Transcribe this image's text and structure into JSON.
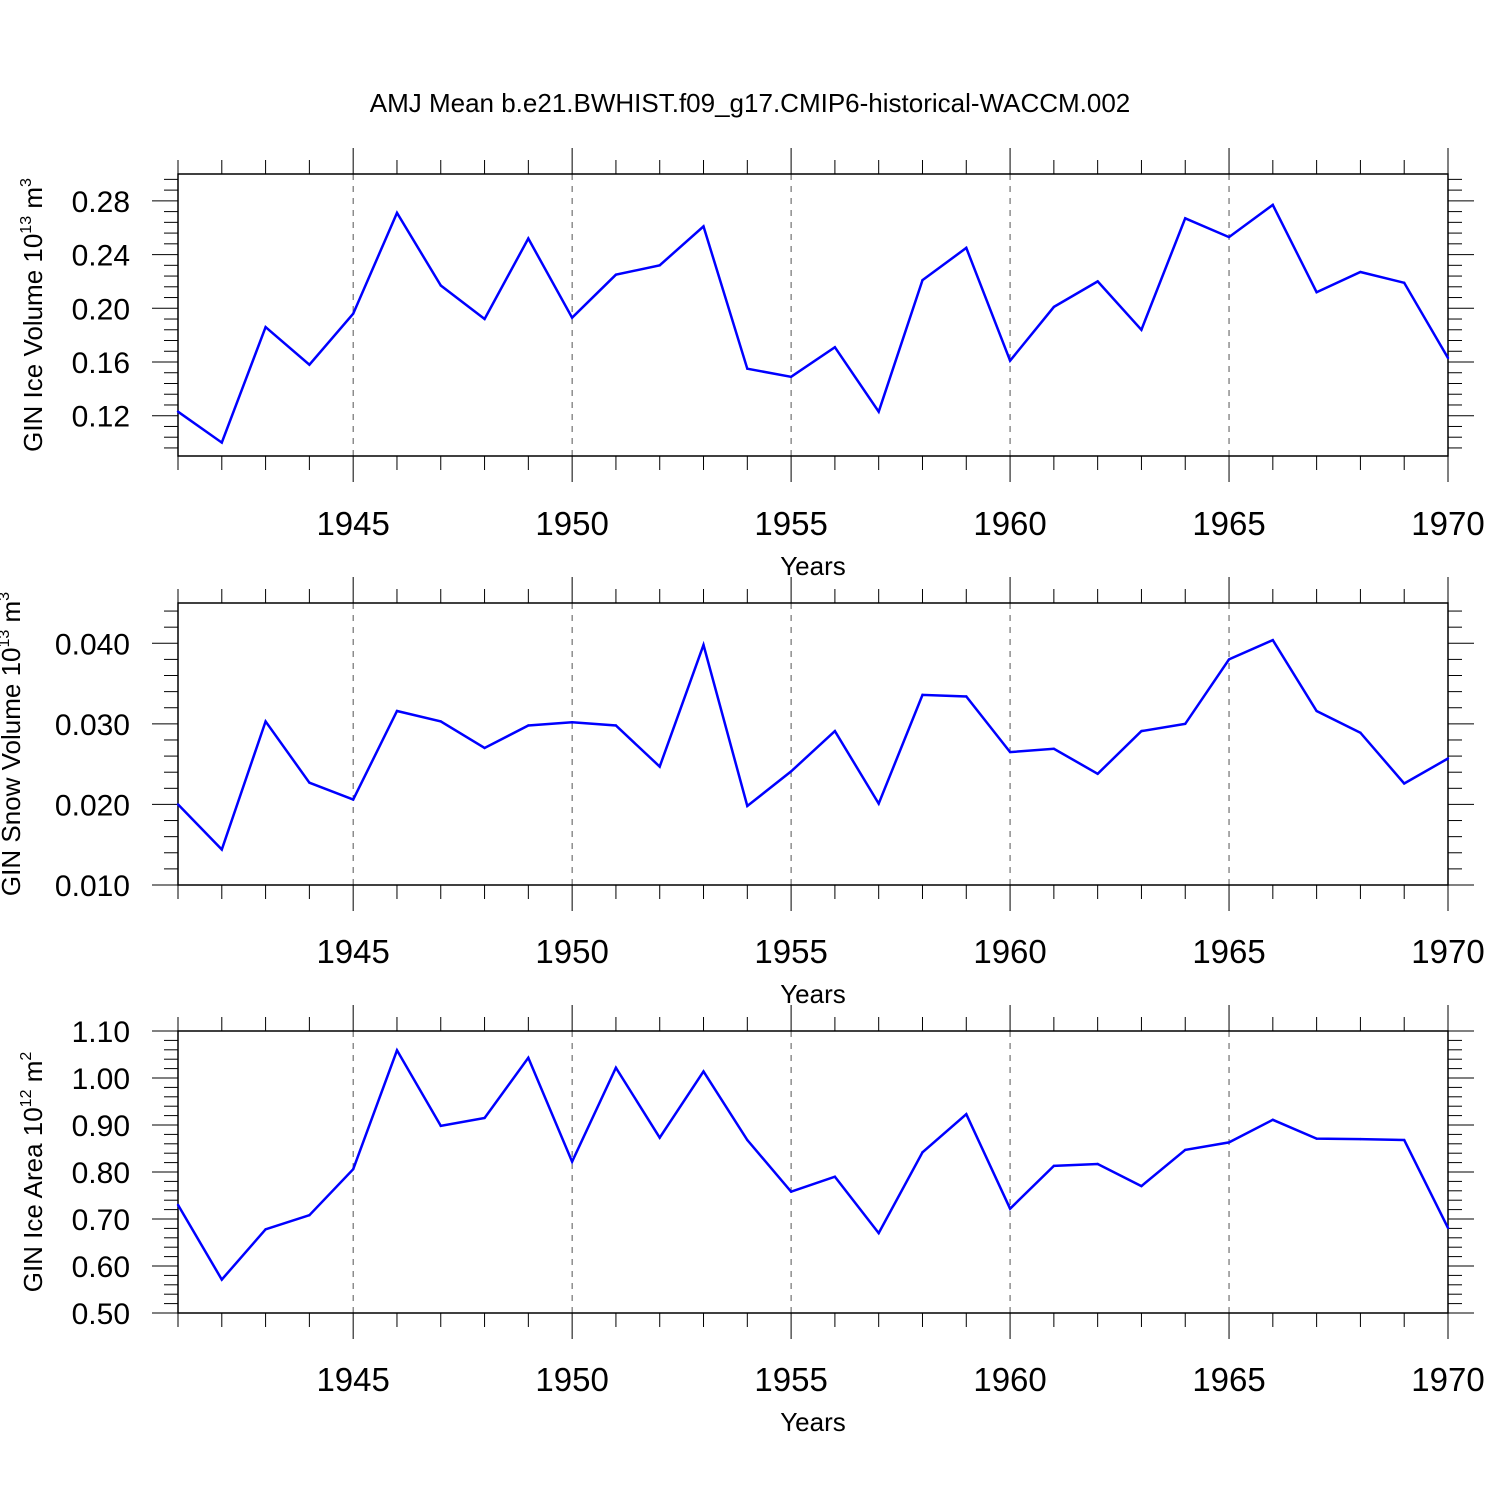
{
  "figure": {
    "title": "AMJ Mean b.e21.BWHIST.f09_g17.CMIP6-historical-WACCM.002",
    "line_color": "#0000ff"
  },
  "chart_data": [
    {
      "type": "line",
      "xlabel": "Years",
      "ylabel": {
        "base": "GIN Ice Volume 10",
        "exp": "13",
        "unit": " m",
        "unit_exp": "3"
      },
      "xlim": [
        1941,
        1970
      ],
      "ylim": [
        0.09,
        0.3
      ],
      "x_ticks": [
        "1945",
        "1950",
        "1955",
        "1960",
        "1965",
        "1970"
      ],
      "y_ticks": [
        "0.12",
        "0.16",
        "0.20",
        "0.24",
        "0.28"
      ],
      "grid": "vertical dashed lines at major x ticks",
      "series": [
        {
          "x": [
            1941,
            1942,
            1943,
            1944,
            1945,
            1946,
            1947,
            1948,
            1949,
            1950,
            1951,
            1952,
            1953,
            1954,
            1955,
            1956,
            1957,
            1958,
            1959,
            1960,
            1961,
            1962,
            1963,
            1964,
            1965,
            1966,
            1967,
            1968,
            1969,
            1970
          ],
          "values": [
            0.123,
            0.1,
            0.186,
            0.158,
            0.196,
            0.271,
            0.217,
            0.192,
            0.252,
            0.193,
            0.225,
            0.232,
            0.261,
            0.155,
            0.149,
            0.171,
            0.123,
            0.221,
            0.245,
            0.161,
            0.201,
            0.22,
            0.184,
            0.267,
            0.253,
            0.277,
            0.212,
            0.227,
            0.219,
            0.163
          ]
        }
      ]
    },
    {
      "type": "line",
      "xlabel": "Years",
      "ylabel": {
        "base": "GIN Snow Volume 10",
        "exp": "13",
        "unit": " m",
        "unit_exp": "3"
      },
      "xlim": [
        1941,
        1970
      ],
      "ylim": [
        0.01,
        0.045
      ],
      "x_ticks": [
        "1945",
        "1950",
        "1955",
        "1960",
        "1965",
        "1970"
      ],
      "y_ticks": [
        "0.010",
        "0.020",
        "0.030",
        "0.040"
      ],
      "grid": "vertical dashed lines at major x ticks",
      "series": [
        {
          "x": [
            1941,
            1942,
            1943,
            1944,
            1945,
            1946,
            1947,
            1948,
            1949,
            1950,
            1951,
            1952,
            1953,
            1954,
            1955,
            1956,
            1957,
            1958,
            1959,
            1960,
            1961,
            1962,
            1963,
            1964,
            1965,
            1966,
            1967,
            1968,
            1969,
            1970
          ],
          "values": [
            0.02,
            0.0144,
            0.0303,
            0.0227,
            0.0206,
            0.0316,
            0.0303,
            0.027,
            0.0298,
            0.0302,
            0.0298,
            0.0247,
            0.0398,
            0.0198,
            0.0241,
            0.0291,
            0.0201,
            0.0336,
            0.0334,
            0.0265,
            0.0269,
            0.0238,
            0.0291,
            0.03,
            0.038,
            0.0404,
            0.0316,
            0.0289,
            0.0226,
            0.0257
          ]
        }
      ]
    },
    {
      "type": "line",
      "xlabel": "Years",
      "ylabel": {
        "base": "GIN Ice Area 10",
        "exp": "12",
        "unit": " m",
        "unit_exp": "2"
      },
      "xlim": [
        1941,
        1970
      ],
      "ylim": [
        0.5,
        1.1
      ],
      "x_ticks": [
        "1945",
        "1950",
        "1955",
        "1960",
        "1965",
        "1970"
      ],
      "y_ticks": [
        "0.50",
        "0.60",
        "0.70",
        "0.80",
        "0.90",
        "1.00",
        "1.10"
      ],
      "grid": "vertical dashed lines at major x ticks",
      "series": [
        {
          "x": [
            1941,
            1942,
            1943,
            1944,
            1945,
            1946,
            1947,
            1948,
            1949,
            1950,
            1951,
            1952,
            1953,
            1954,
            1955,
            1956,
            1957,
            1958,
            1959,
            1960,
            1961,
            1962,
            1963,
            1964,
            1965,
            1966,
            1967,
            1968,
            1969,
            1970
          ],
          "values": [
            0.73,
            0.571,
            0.678,
            0.708,
            0.806,
            1.059,
            0.898,
            0.915,
            1.043,
            0.822,
            1.022,
            0.873,
            1.014,
            0.868,
            0.758,
            0.79,
            0.67,
            0.842,
            0.923,
            0.722,
            0.813,
            0.817,
            0.77,
            0.847,
            0.863,
            0.911,
            0.871,
            0.87,
            0.868,
            0.681
          ]
        }
      ]
    }
  ]
}
